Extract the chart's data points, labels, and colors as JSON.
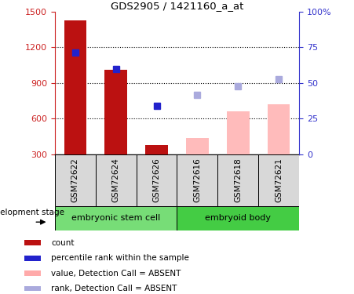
{
  "title": "GDS2905 / 1421160_a_at",
  "categories": [
    "GSM72622",
    "GSM72624",
    "GSM72626",
    "GSM72616",
    "GSM72618",
    "GSM72621"
  ],
  "red_bars": [
    1430,
    1010,
    380,
    null,
    null,
    null
  ],
  "pink_bars": [
    null,
    null,
    null,
    440,
    660,
    720
  ],
  "blue_squares": [
    1160,
    1020,
    710,
    null,
    null,
    null
  ],
  "light_blue_squares": [
    null,
    null,
    null,
    800,
    870,
    930
  ],
  "ylim_left": [
    300,
    1500
  ],
  "ylim_right": [
    0,
    100
  ],
  "yticks_left": [
    300,
    600,
    900,
    1200,
    1500
  ],
  "yticks_right": [
    0,
    25,
    50,
    75,
    100
  ],
  "ytick_labels_right": [
    "0",
    "25",
    "50",
    "75",
    "100%"
  ],
  "group1_label": "embryonic stem cell",
  "group2_label": "embryoid body",
  "stage_label": "development stage",
  "stage_group1_color": "#77dd77",
  "stage_group2_color": "#44cc44",
  "legend_labels": [
    "count",
    "percentile rank within the sample",
    "value, Detection Call = ABSENT",
    "rank, Detection Call = ABSENT"
  ],
  "legend_colors": [
    "#bb1111",
    "#2222cc",
    "#ffaaaa",
    "#aaaadd"
  ],
  "red_color": "#bb1111",
  "pink_color": "#ffbbbb",
  "blue_color": "#2222cc",
  "light_blue_color": "#aaaadd",
  "tick_color_left": "#cc2222",
  "tick_color_right": "#3333cc",
  "grid_yticks": [
    600,
    900,
    1200
  ]
}
